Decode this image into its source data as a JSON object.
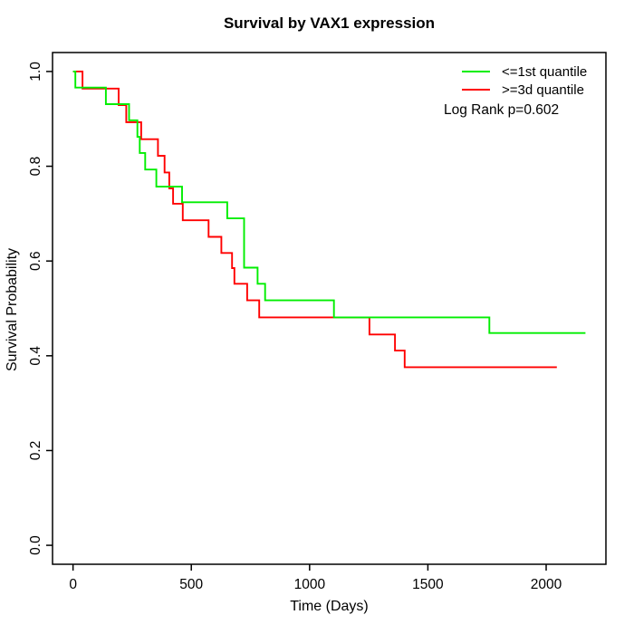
{
  "figure": {
    "title": "Survival by VAX1 expression",
    "xlabel": "Time (Days)",
    "ylabel": "Survival Probability",
    "annotation": "Log Rank p=0.602"
  },
  "chart_data": {
    "type": "line",
    "subtype": "kaplan-meier-step-survival",
    "title": "Survival by VAX1 expression",
    "xlabel": "Time (Days)",
    "ylabel": "Survival Probability",
    "xlim": [
      0,
      2166
    ],
    "ylim": [
      0,
      1
    ],
    "grid": false,
    "legend_position": "top-right-inside",
    "annotation": "Log Rank p=0.602",
    "x_ticks": {
      "values": [
        0,
        500,
        1000,
        1500,
        2000
      ],
      "labels": [
        "0",
        "500",
        "1000",
        "1500",
        "2000"
      ]
    },
    "y_ticks": {
      "values": [
        0,
        0.2,
        0.4,
        0.6,
        0.8,
        1.0
      ],
      "labels": [
        "0.0",
        "0.2",
        "0.4",
        "0.6",
        "0.8",
        "1.0"
      ]
    },
    "axis_color": "#000000",
    "series": [
      {
        "name": ">=3d quantile",
        "color": "#FF0000",
        "steps": [
          [
            0,
            1.0
          ],
          [
            40,
            0.964
          ],
          [
            193,
            0.929
          ],
          [
            225,
            0.893
          ],
          [
            288,
            0.857
          ],
          [
            359,
            0.822
          ],
          [
            387,
            0.787
          ],
          [
            407,
            0.753
          ],
          [
            423,
            0.721
          ],
          [
            464,
            0.686
          ],
          [
            573,
            0.651
          ],
          [
            627,
            0.617
          ],
          [
            672,
            0.585
          ],
          [
            682,
            0.552
          ],
          [
            736,
            0.517
          ],
          [
            787,
            0.481
          ],
          [
            1253,
            0.445
          ],
          [
            1361,
            0.411
          ],
          [
            1402,
            0.376
          ]
        ],
        "end_time": 2045
      },
      {
        "name": "<=1st quantile",
        "color": "#00EE00",
        "steps": [
          [
            0,
            1.0
          ],
          [
            10,
            0.966
          ],
          [
            139,
            0.931
          ],
          [
            237,
            0.897
          ],
          [
            272,
            0.862
          ],
          [
            282,
            0.828
          ],
          [
            305,
            0.793
          ],
          [
            352,
            0.757
          ],
          [
            461,
            0.724
          ],
          [
            652,
            0.69
          ],
          [
            723,
            0.586
          ],
          [
            780,
            0.552
          ],
          [
            812,
            0.517
          ],
          [
            1103,
            0.481
          ],
          [
            1760,
            0.448
          ]
        ],
        "end_time": 2166
      }
    ],
    "legend_order": [
      1,
      0
    ]
  }
}
